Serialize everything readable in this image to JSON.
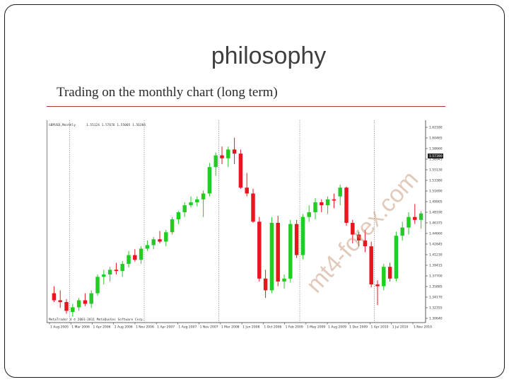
{
  "slide": {
    "title": "philosophy",
    "subtitle": "Trading on the monthly chart (long term)"
  },
  "chart_header": {
    "symbol": "GBPUSD,Monthly",
    "ohlc": "1.55124 1.57676 1.55005 1.56384"
  },
  "chart_footer": "MetaTrader 4 © 2001-2011 MetaQuotes Software Corp.",
  "watermark": "mt4-forex.com",
  "current_price": "1.57390",
  "colors": {
    "bull": "#22cc22",
    "bear": "#e8141e",
    "grid": "#888888",
    "accent": "#b03a2e"
  },
  "chart_data": {
    "type": "candlestick",
    "title": "GBPUSD,Monthly",
    "ylim": [
      1.29,
      1.63
    ],
    "y_ticks": [
      "1.62180",
      "1.60465",
      "1.58660",
      "1.56945",
      "1.55130",
      "1.53380",
      "1.51690",
      "1.49905",
      "1.48190",
      "1.46375",
      "1.44660",
      "1.42845",
      "1.41230",
      "1.39415",
      "1.37700",
      "1.35885",
      "1.34170",
      "1.32355",
      "1.30640"
    ],
    "x_labels": [
      "1 Aug 2005",
      "1 Mar 2006",
      "1 Apr 2006",
      "1 Aug 2006",
      "1 Nov 2006",
      "1 Apr 2007",
      "1 Aug 2007",
      "1 Nov 2007",
      "1 Mar 2008",
      "1 Jun 2008",
      "1 Oct 2008",
      "1 Feb 2009",
      "1 May 2009",
      "1 Aug 2009",
      "1 Dec 2009",
      "1 Apr 2010",
      "1 Jul 2010",
      "1 Nov 2010"
    ],
    "candles": [
      {
        "o": 1.34,
        "h": 1.352,
        "l": 1.325,
        "c": 1.328
      },
      {
        "o": 1.328,
        "h": 1.345,
        "l": 1.315,
        "c": 1.325
      },
      {
        "o": 1.325,
        "h": 1.33,
        "l": 1.305,
        "c": 1.31
      },
      {
        "o": 1.308,
        "h": 1.322,
        "l": 1.3,
        "c": 1.316
      },
      {
        "o": 1.316,
        "h": 1.332,
        "l": 1.31,
        "c": 1.328
      },
      {
        "o": 1.328,
        "h": 1.34,
        "l": 1.318,
        "c": 1.322
      },
      {
        "o": 1.322,
        "h": 1.345,
        "l": 1.315,
        "c": 1.34
      },
      {
        "o": 1.34,
        "h": 1.372,
        "l": 1.336,
        "c": 1.368
      },
      {
        "o": 1.368,
        "h": 1.38,
        "l": 1.355,
        "c": 1.372
      },
      {
        "o": 1.372,
        "h": 1.385,
        "l": 1.36,
        "c": 1.38
      },
      {
        "o": 1.38,
        "h": 1.392,
        "l": 1.372,
        "c": 1.378
      },
      {
        "o": 1.378,
        "h": 1.395,
        "l": 1.368,
        "c": 1.39
      },
      {
        "o": 1.39,
        "h": 1.412,
        "l": 1.384,
        "c": 1.405
      },
      {
        "o": 1.405,
        "h": 1.415,
        "l": 1.394,
        "c": 1.397
      },
      {
        "o": 1.397,
        "h": 1.42,
        "l": 1.39,
        "c": 1.416
      },
      {
        "o": 1.416,
        "h": 1.43,
        "l": 1.412,
        "c": 1.422
      },
      {
        "o": 1.422,
        "h": 1.436,
        "l": 1.415,
        "c": 1.432
      },
      {
        "o": 1.432,
        "h": 1.446,
        "l": 1.425,
        "c": 1.428
      },
      {
        "o": 1.428,
        "h": 1.448,
        "l": 1.42,
        "c": 1.444
      },
      {
        "o": 1.444,
        "h": 1.47,
        "l": 1.44,
        "c": 1.466
      },
      {
        "o": 1.466,
        "h": 1.48,
        "l": 1.458,
        "c": 1.478
      },
      {
        "o": 1.478,
        "h": 1.495,
        "l": 1.47,
        "c": 1.49
      },
      {
        "o": 1.49,
        "h": 1.505,
        "l": 1.486,
        "c": 1.495
      },
      {
        "o": 1.495,
        "h": 1.505,
        "l": 1.488,
        "c": 1.5
      },
      {
        "o": 1.5,
        "h": 1.515,
        "l": 1.47,
        "c": 1.51
      },
      {
        "o": 1.51,
        "h": 1.562,
        "l": 1.505,
        "c": 1.555
      },
      {
        "o": 1.555,
        "h": 1.58,
        "l": 1.54,
        "c": 1.575
      },
      {
        "o": 1.575,
        "h": 1.59,
        "l": 1.56,
        "c": 1.57
      },
      {
        "o": 1.57,
        "h": 1.59,
        "l": 1.555,
        "c": 1.585
      },
      {
        "o": 1.585,
        "h": 1.605,
        "l": 1.56,
        "c": 1.578
      },
      {
        "o": 1.578,
        "h": 1.585,
        "l": 1.518,
        "c": 1.52
      },
      {
        "o": 1.52,
        "h": 1.545,
        "l": 1.505,
        "c": 1.51
      },
      {
        "o": 1.51,
        "h": 1.518,
        "l": 1.46,
        "c": 1.462
      },
      {
        "o": 1.462,
        "h": 1.47,
        "l": 1.36,
        "c": 1.365
      },
      {
        "o": 1.365,
        "h": 1.38,
        "l": 1.332,
        "c": 1.345
      },
      {
        "o": 1.345,
        "h": 1.47,
        "l": 1.34,
        "c": 1.46
      },
      {
        "o": 1.46,
        "h": 1.472,
        "l": 1.352,
        "c": 1.36
      },
      {
        "o": 1.36,
        "h": 1.372,
        "l": 1.348,
        "c": 1.365
      },
      {
        "o": 1.365,
        "h": 1.465,
        "l": 1.358,
        "c": 1.458
      },
      {
        "o": 1.458,
        "h": 1.465,
        "l": 1.4,
        "c": 1.405
      },
      {
        "o": 1.405,
        "h": 1.475,
        "l": 1.398,
        "c": 1.47
      },
      {
        "o": 1.47,
        "h": 1.49,
        "l": 1.462,
        "c": 1.478
      },
      {
        "o": 1.478,
        "h": 1.502,
        "l": 1.466,
        "c": 1.495
      },
      {
        "o": 1.495,
        "h": 1.5,
        "l": 1.478,
        "c": 1.49
      },
      {
        "o": 1.49,
        "h": 1.505,
        "l": 1.475,
        "c": 1.5
      },
      {
        "o": 1.5,
        "h": 1.51,
        "l": 1.485,
        "c": 1.498
      },
      {
        "o": 1.505,
        "h": 1.525,
        "l": 1.49,
        "c": 1.52
      },
      {
        "o": 1.52,
        "h": 1.522,
        "l": 1.455,
        "c": 1.46
      },
      {
        "o": 1.46,
        "h": 1.465,
        "l": 1.425,
        "c": 1.44
      },
      {
        "o": 1.44,
        "h": 1.445,
        "l": 1.42,
        "c": 1.43
      },
      {
        "o": 1.43,
        "h": 1.448,
        "l": 1.41,
        "c": 1.42
      },
      {
        "o": 1.42,
        "h": 1.428,
        "l": 1.35,
        "c": 1.355
      },
      {
        "o": 1.355,
        "h": 1.362,
        "l": 1.32,
        "c": 1.352
      },
      {
        "o": 1.352,
        "h": 1.39,
        "l": 1.345,
        "c": 1.385
      },
      {
        "o": 1.385,
        "h": 1.392,
        "l": 1.36,
        "c": 1.365
      },
      {
        "o": 1.365,
        "h": 1.445,
        "l": 1.36,
        "c": 1.438
      },
      {
        "o": 1.438,
        "h": 1.462,
        "l": 1.43,
        "c": 1.452
      },
      {
        "o": 1.452,
        "h": 1.478,
        "l": 1.44,
        "c": 1.47
      },
      {
        "o": 1.47,
        "h": 1.492,
        "l": 1.458,
        "c": 1.465
      },
      {
        "o": 1.465,
        "h": 1.48,
        "l": 1.45,
        "c": 1.476
      }
    ],
    "vlines_at_candle": [
      3,
      15,
      27,
      40,
      52
    ]
  }
}
